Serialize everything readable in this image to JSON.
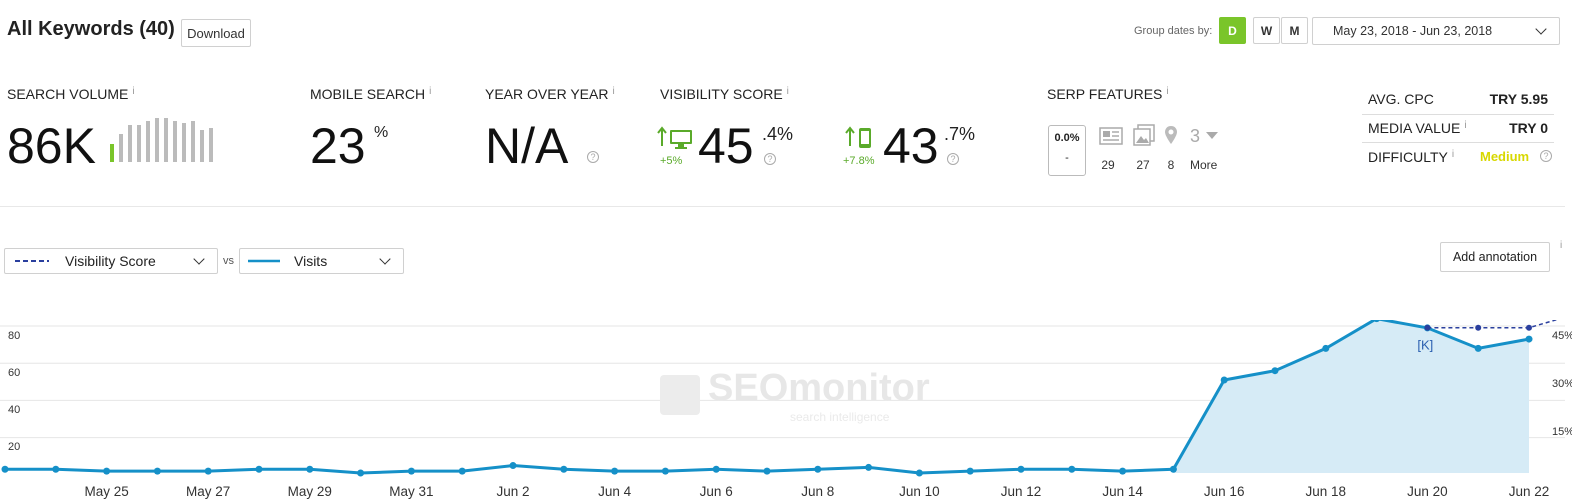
{
  "header": {
    "title": "All Keywords (40)",
    "download_label": "Download",
    "group_dates_label": "Group dates by:",
    "group_buttons": [
      "D",
      "W",
      "M"
    ],
    "date_range": "May 23, 2018 - Jun 23, 2018"
  },
  "metrics": {
    "search_volume": {
      "label": "SEARCH VOLUME",
      "value": "86K"
    },
    "mobile_search": {
      "label": "MOBILE SEARCH",
      "value": "23",
      "unit": "%"
    },
    "year_over_year": {
      "label": "YEAR OVER YEAR",
      "value": "N/A"
    },
    "visibility": {
      "label": "VISIBILITY SCORE",
      "desktop": {
        "change": "+5%",
        "value": "45",
        "decimal": ".4%"
      },
      "mobile": {
        "change": "+7.8%",
        "value": "43",
        "decimal": ".7%"
      }
    },
    "serp": {
      "label": "SERP FEATURES",
      "box_value": "0.0%",
      "box_sub": "-",
      "counts": [
        "29",
        "27",
        "8"
      ],
      "more_count": "3",
      "more_label": "More"
    },
    "side": {
      "avg_cpc_label": "AVG. CPC",
      "avg_cpc_value": "TRY 5.95",
      "media_value_label": "MEDIA VALUE",
      "media_value_value": "TRY 0",
      "difficulty_label": "DIFFICULTY",
      "difficulty_value": "Medium"
    },
    "info_glyph": "i",
    "help_glyph": "?"
  },
  "controls": {
    "series1": "Visibility Score",
    "vs": "vs",
    "series2": "Visits",
    "add_annotation": "Add annotation"
  },
  "colors": {
    "accent_green": "#7ac52a",
    "visits_line": "#1590c8",
    "visibility_line": "#2a3f9e",
    "area_fill": "#d6ebf6",
    "difficulty": "#d8d800"
  },
  "chart_data": {
    "type": "line",
    "x": [
      "May 23",
      "May 24",
      "May 25",
      "May 26",
      "May 27",
      "May 28",
      "May 29",
      "May 30",
      "May 31",
      "Jun 1",
      "Jun 2",
      "Jun 3",
      "Jun 4",
      "Jun 5",
      "Jun 6",
      "Jun 7",
      "Jun 8",
      "Jun 9",
      "Jun 10",
      "Jun 11",
      "Jun 12",
      "Jun 13",
      "Jun 14",
      "Jun 15",
      "Jun 16",
      "Jun 17",
      "Jun 18",
      "Jun 19",
      "Jun 20",
      "Jun 21",
      "Jun 22"
    ],
    "xticks": [
      "May 25",
      "May 27",
      "May 29",
      "May 31",
      "Jun 2",
      "Jun 4",
      "Jun 6",
      "Jun 8",
      "Jun 10",
      "Jun 12",
      "Jun 14",
      "Jun 16",
      "Jun 18",
      "Jun 20",
      "Jun 22"
    ],
    "y_left_ticks": [
      "80",
      "60",
      "40",
      "20"
    ],
    "y_left_lim": [
      0,
      85
    ],
    "y_right_ticks": [
      "45%",
      "30%",
      "15%"
    ],
    "y_right_lim": [
      0,
      50
    ],
    "series": [
      {
        "name": "Visits",
        "values": [
          2,
          2,
          1,
          1,
          1,
          2,
          2,
          0,
          1,
          1,
          4,
          2,
          1,
          1,
          2,
          1,
          2,
          3,
          0,
          1,
          2,
          2,
          1,
          2,
          50,
          55,
          67,
          83,
          78,
          67,
          72
        ]
      },
      {
        "name": "Visibility Score",
        "values_partial": {
          "Jun 20": 45.4,
          "Jun 21": 45.4,
          "Jun 22": 45.4,
          "Jun 23": 50.0
        }
      }
    ],
    "annotation": {
      "date": "Jun 20",
      "label": "[K]"
    },
    "watermark": "SEOmonitor",
    "watermark_sub": "search intelligence",
    "sparkline": [
      40,
      60,
      80,
      80,
      90,
      95,
      95,
      90,
      85,
      90,
      70,
      75
    ]
  }
}
